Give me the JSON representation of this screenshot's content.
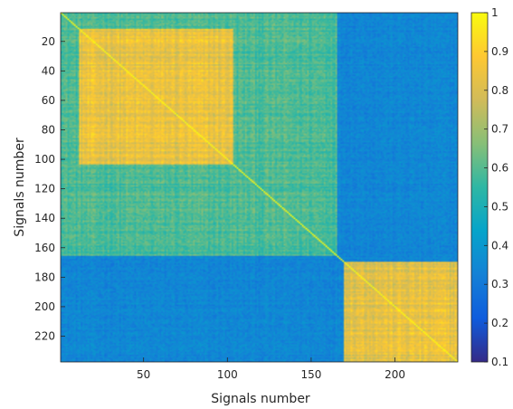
{
  "chart_data": {
    "type": "heatmap",
    "title": "",
    "xlabel": "Signals number",
    "ylabel": "Signals number",
    "n": 237,
    "xlim": [
      1,
      237
    ],
    "ylim": [
      1,
      237
    ],
    "y_direction": "reversed",
    "x_ticks": [
      "50",
      "100",
      "150",
      "200"
    ],
    "y_ticks": [
      "20",
      "40",
      "60",
      "80",
      "100",
      "120",
      "140",
      "160",
      "180",
      "200",
      "220"
    ],
    "colorbar": {
      "limits": [
        0.1,
        1
      ],
      "ticks": [
        "0.1",
        "0.2",
        "0.3",
        "0.4",
        "0.5",
        "0.6",
        "0.7",
        "0.8",
        "0.9",
        "1"
      ],
      "colormap": "parula"
    },
    "structure": {
      "diagonal_value": 1,
      "blocks": [
        {
          "range": [
            1,
            165
          ],
          "typical_value": 0.6
        },
        {
          "range": [
            12,
            103
          ],
          "typical_value": 0.85
        },
        {
          "range": [
            170,
            237
          ],
          "typical_value": 0.85
        }
      ],
      "off_block_value": 0.35
    },
    "colorbar_colors": [
      "#352a87",
      "#0f5cdd",
      "#1481d6",
      "#06a4ca",
      "#2eb7a4",
      "#87bf77",
      "#d1bb59",
      "#fec832",
      "#f9fb0e"
    ]
  }
}
